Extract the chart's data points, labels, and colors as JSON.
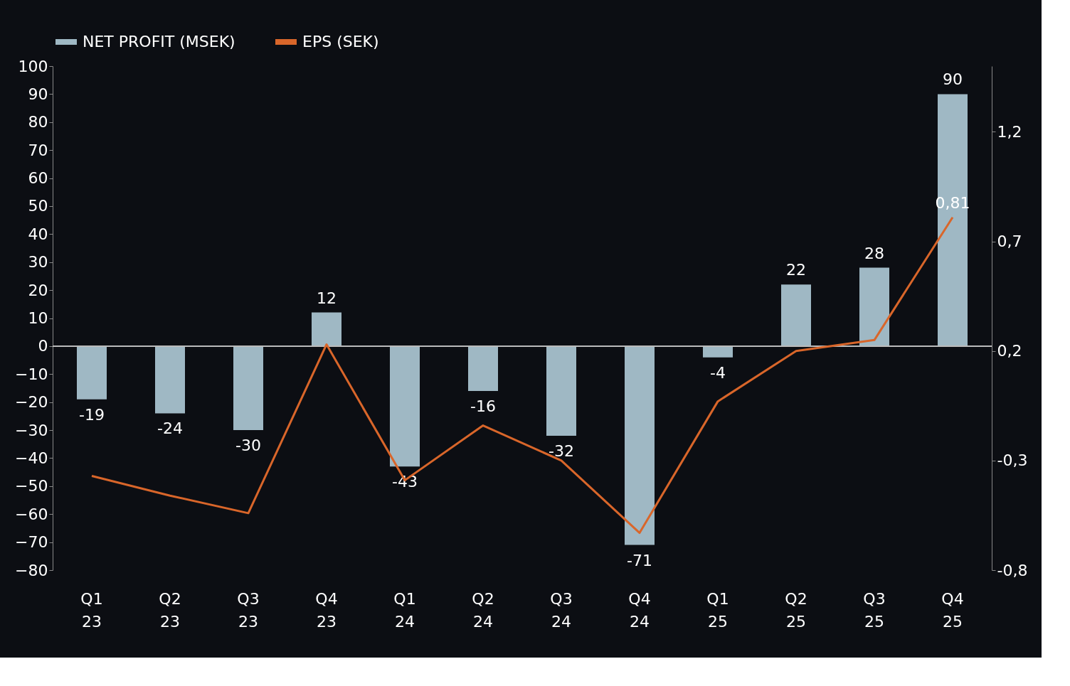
{
  "chart_data": {
    "type": "bar",
    "categories": [
      "Q1 23",
      "Q2 23",
      "Q3 23",
      "Q4 23",
      "Q1 24",
      "Q2 24",
      "Q3 24",
      "Q4 24",
      "Q1 25",
      "Q2 25",
      "Q3 25",
      "Q4 25"
    ],
    "series": [
      {
        "name": "NET PROFIT (MSEK)",
        "color": "#9fb8c4",
        "values": [
          -19,
          -24,
          -30,
          12,
          -43,
          -16,
          -32,
          -71,
          -4,
          22,
          28,
          90
        ]
      },
      {
        "name": "EPS (SEK)",
        "type": "line",
        "axis": "y2",
        "color": "#d9662a",
        "values": [
          -0.37,
          -0.46,
          -0.54,
          0.23,
          -0.39,
          -0.14,
          -0.3,
          -0.63,
          -0.03,
          0.2,
          0.25,
          0.81
        ],
        "value_labels": [
          null,
          null,
          null,
          null,
          null,
          null,
          null,
          null,
          null,
          null,
          null,
          "0,81"
        ]
      }
    ],
    "data_labels": true,
    "ylim": [
      -80,
      100
    ],
    "yticks": [
      -80,
      -70,
      -60,
      -50,
      -40,
      -30,
      -20,
      -10,
      0,
      10,
      20,
      30,
      40,
      50,
      60,
      70,
      80,
      90,
      100
    ],
    "y2lim": [
      -0.8,
      1.5
    ],
    "y2ticks": [
      {
        "value": -0.8,
        "label": "-0,8"
      },
      {
        "value": -0.3,
        "label": "-0,3"
      },
      {
        "value": 0.2,
        "label": "0,2"
      },
      {
        "value": 0.7,
        "label": "0,7"
      },
      {
        "value": 1.2,
        "label": "1,2"
      }
    ],
    "legend": "top"
  }
}
